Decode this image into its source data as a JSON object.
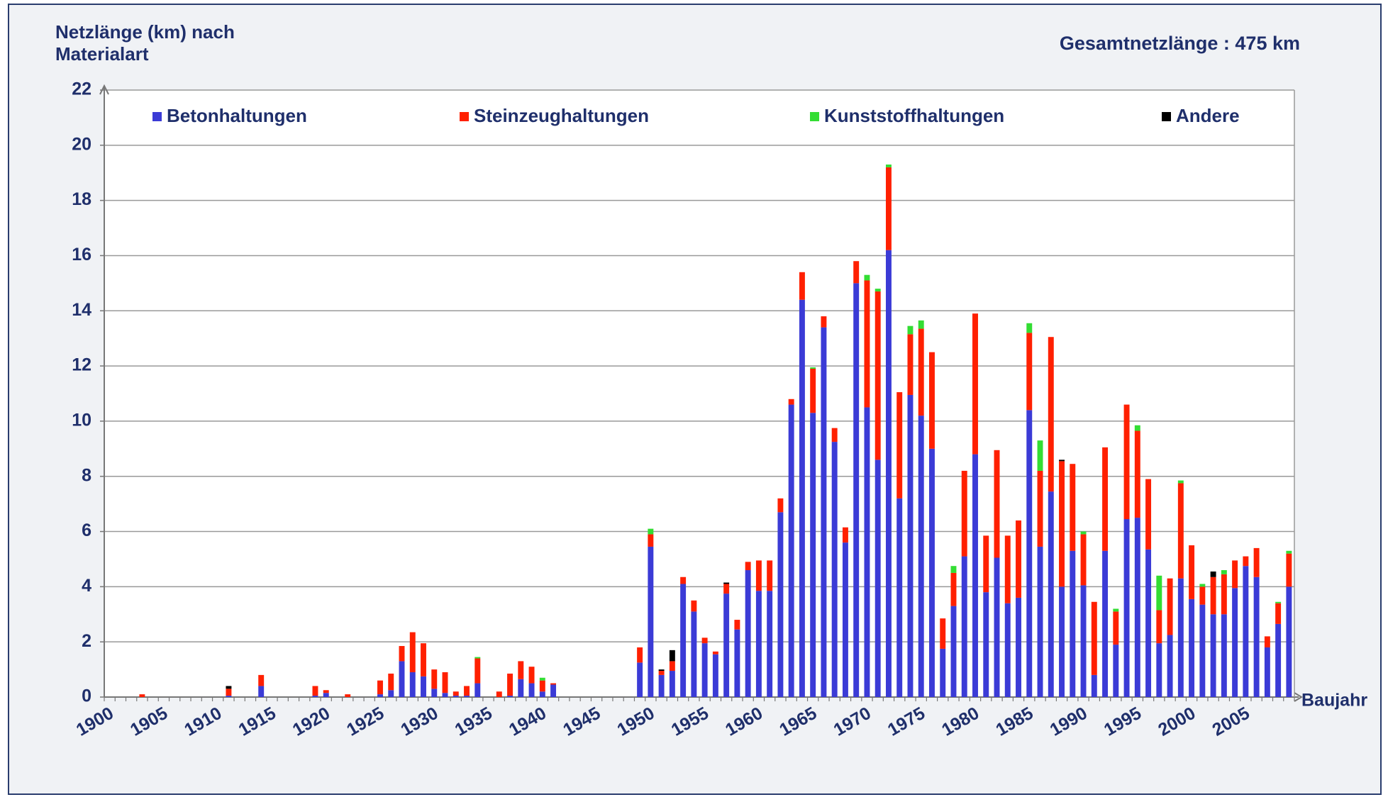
{
  "chart_data": {
    "type": "stacked_bar",
    "title": [
      "Netzlänge (km) nach",
      "Materialart"
    ],
    "annotation": "Gesamtnetzlänge : 475 km",
    "xlabel": "Baujahr",
    "categories": [
      "1900",
      null,
      null,
      null,
      null,
      "1905",
      null,
      null,
      null,
      null,
      "1910",
      null,
      null,
      null,
      null,
      "1915",
      null,
      null,
      null,
      null,
      "1920",
      null,
      null,
      null,
      null,
      "1925",
      null,
      null,
      null,
      null,
      "1930",
      null,
      null,
      null,
      null,
      "1935",
      null,
      null,
      null,
      null,
      "1940",
      null,
      null,
      null,
      null,
      "1945",
      null,
      null,
      null,
      null,
      "1950",
      null,
      null,
      null,
      null,
      "1955",
      null,
      null,
      null,
      null,
      "1960",
      null,
      null,
      null,
      null,
      "1965",
      null,
      null,
      null,
      null,
      "1970",
      null,
      null,
      null,
      null,
      "1975",
      null,
      null,
      null,
      null,
      "1980",
      null,
      null,
      null,
      null,
      "1985",
      null,
      null,
      null,
      null,
      "1990",
      null,
      null,
      null,
      null,
      "1995",
      null,
      null,
      null,
      null,
      "2000",
      null,
      null,
      null,
      null,
      "2005",
      null,
      null,
      null,
      null
    ],
    "series": [
      {
        "name": "Betonhaltungen",
        "color": "#3b3bd6",
        "values": [
          0,
          0,
          0,
          0,
          0,
          0,
          0,
          0,
          0,
          0,
          0,
          0.05,
          0,
          0,
          0.4,
          0,
          0,
          0,
          0,
          0.05,
          0.15,
          0,
          0,
          0,
          0,
          0.1,
          0.25,
          1.3,
          0.9,
          0.75,
          0.3,
          0.15,
          0.05,
          0.05,
          0.5,
          0,
          0,
          0.05,
          0.65,
          0.5,
          0.2,
          0.45,
          0,
          0,
          0,
          0,
          0,
          0,
          0,
          1.25,
          5.45,
          0.8,
          0.95,
          4.1,
          3.1,
          1.95,
          1.55,
          3.75,
          2.45,
          4.6,
          3.85,
          3.85,
          6.7,
          10.6,
          14.4,
          10.3,
          13.4,
          9.25,
          5.6,
          15.0,
          10.5,
          8.6,
          16.2,
          7.2,
          10.95,
          10.2,
          9.0,
          1.75,
          3.3,
          5.1,
          8.8,
          3.8,
          5.05,
          3.4,
          3.6,
          10.4,
          5.45,
          7.45,
          4.0,
          5.3,
          4.05,
          0.8,
          5.3,
          1.9,
          6.45,
          6.5,
          5.35,
          1.95,
          2.25,
          4.3,
          3.55,
          3.35,
          3.0,
          3.0,
          3.95,
          4.75,
          4.35,
          1.8,
          2.65,
          4.0
        ]
      },
      {
        "name": "Steinzeughaltungen",
        "color": "#ff2000",
        "values": [
          0,
          0,
          0,
          0.1,
          0,
          0,
          0,
          0,
          0,
          0,
          0,
          0.25,
          0,
          0,
          0.4,
          0,
          0,
          0,
          0,
          0.35,
          0.1,
          0,
          0.1,
          0,
          0,
          0.5,
          0.6,
          0.55,
          1.45,
          1.2,
          0.7,
          0.75,
          0.15,
          0.35,
          0.9,
          0,
          0.2,
          0.8,
          0.65,
          0.6,
          0.4,
          0.05,
          0,
          0,
          0,
          0,
          0,
          0,
          0,
          0.55,
          0.45,
          0.15,
          0.35,
          0.25,
          0.4,
          0.2,
          0.1,
          0.35,
          0.35,
          0.3,
          1.1,
          1.1,
          0.5,
          0.2,
          1.0,
          1.6,
          0.4,
          0.5,
          0.55,
          0.8,
          4.6,
          6.1,
          3.0,
          3.85,
          2.2,
          3.15,
          3.5,
          1.1,
          1.2,
          3.1,
          5.1,
          2.05,
          3.9,
          2.45,
          2.8,
          2.8,
          2.75,
          5.6,
          4.55,
          3.15,
          1.85,
          2.65,
          3.75,
          1.2,
          4.15,
          3.15,
          2.55,
          1.2,
          2.05,
          3.45,
          1.95,
          0.65,
          1.35,
          1.45,
          1.0,
          0.35,
          1.05,
          0.4,
          0.75,
          1.2
        ]
      },
      {
        "name": "Kunststoffhaltungen",
        "color": "#33dd33",
        "values": [
          0,
          0,
          0,
          0,
          0,
          0,
          0,
          0,
          0,
          0,
          0,
          0,
          0,
          0,
          0,
          0,
          0,
          0,
          0,
          0,
          0,
          0,
          0,
          0,
          0,
          0,
          0,
          0,
          0,
          0,
          0,
          0,
          0,
          0,
          0.05,
          0,
          0,
          0,
          0,
          0,
          0.1,
          0,
          0,
          0,
          0,
          0,
          0,
          0,
          0,
          0,
          0.2,
          0,
          0,
          0,
          0,
          0,
          0,
          0,
          0,
          0,
          0,
          0,
          0,
          0,
          0,
          0.05,
          0,
          0,
          0,
          0,
          0.2,
          0.1,
          0.1,
          0,
          0.3,
          0.3,
          0,
          0,
          0.25,
          0,
          0,
          0,
          0,
          0,
          0,
          0.35,
          1.1,
          0,
          0,
          0,
          0.1,
          0,
          0,
          0.1,
          0,
          0.2,
          0,
          1.25,
          0,
          0.1,
          0,
          0.1,
          0,
          0.15,
          0,
          0,
          0,
          0,
          0.05,
          0.1
        ]
      },
      {
        "name": "Andere",
        "color": "#000000",
        "values": [
          0,
          0,
          0,
          0,
          0,
          0,
          0,
          0,
          0,
          0,
          0,
          0.1,
          0,
          0,
          0,
          0,
          0,
          0,
          0,
          0,
          0,
          0,
          0,
          0,
          0,
          0,
          0,
          0,
          0,
          0,
          0,
          0,
          0,
          0,
          0,
          0,
          0,
          0,
          0,
          0,
          0,
          0,
          0,
          0,
          0,
          0,
          0,
          0,
          0,
          0,
          0,
          0.05,
          0.4,
          0,
          0,
          0,
          0,
          0.05,
          0,
          0,
          0,
          0,
          0,
          0,
          0,
          0,
          0,
          0,
          0,
          0,
          0,
          0,
          0,
          0,
          0,
          0,
          0,
          0,
          0,
          0,
          0,
          0,
          0,
          0,
          0,
          0,
          0,
          0,
          0.05,
          0,
          0,
          0,
          0,
          0,
          0,
          0,
          0,
          0,
          0,
          0,
          0,
          0,
          0.2,
          0,
          0,
          0,
          0,
          0,
          0,
          0
        ]
      }
    ],
    "ylim": [
      0,
      22
    ],
    "yticks": [
      0,
      2,
      4,
      6,
      8,
      10,
      12,
      14,
      16,
      18,
      20,
      22
    ],
    "grid": true,
    "legend": "top"
  }
}
